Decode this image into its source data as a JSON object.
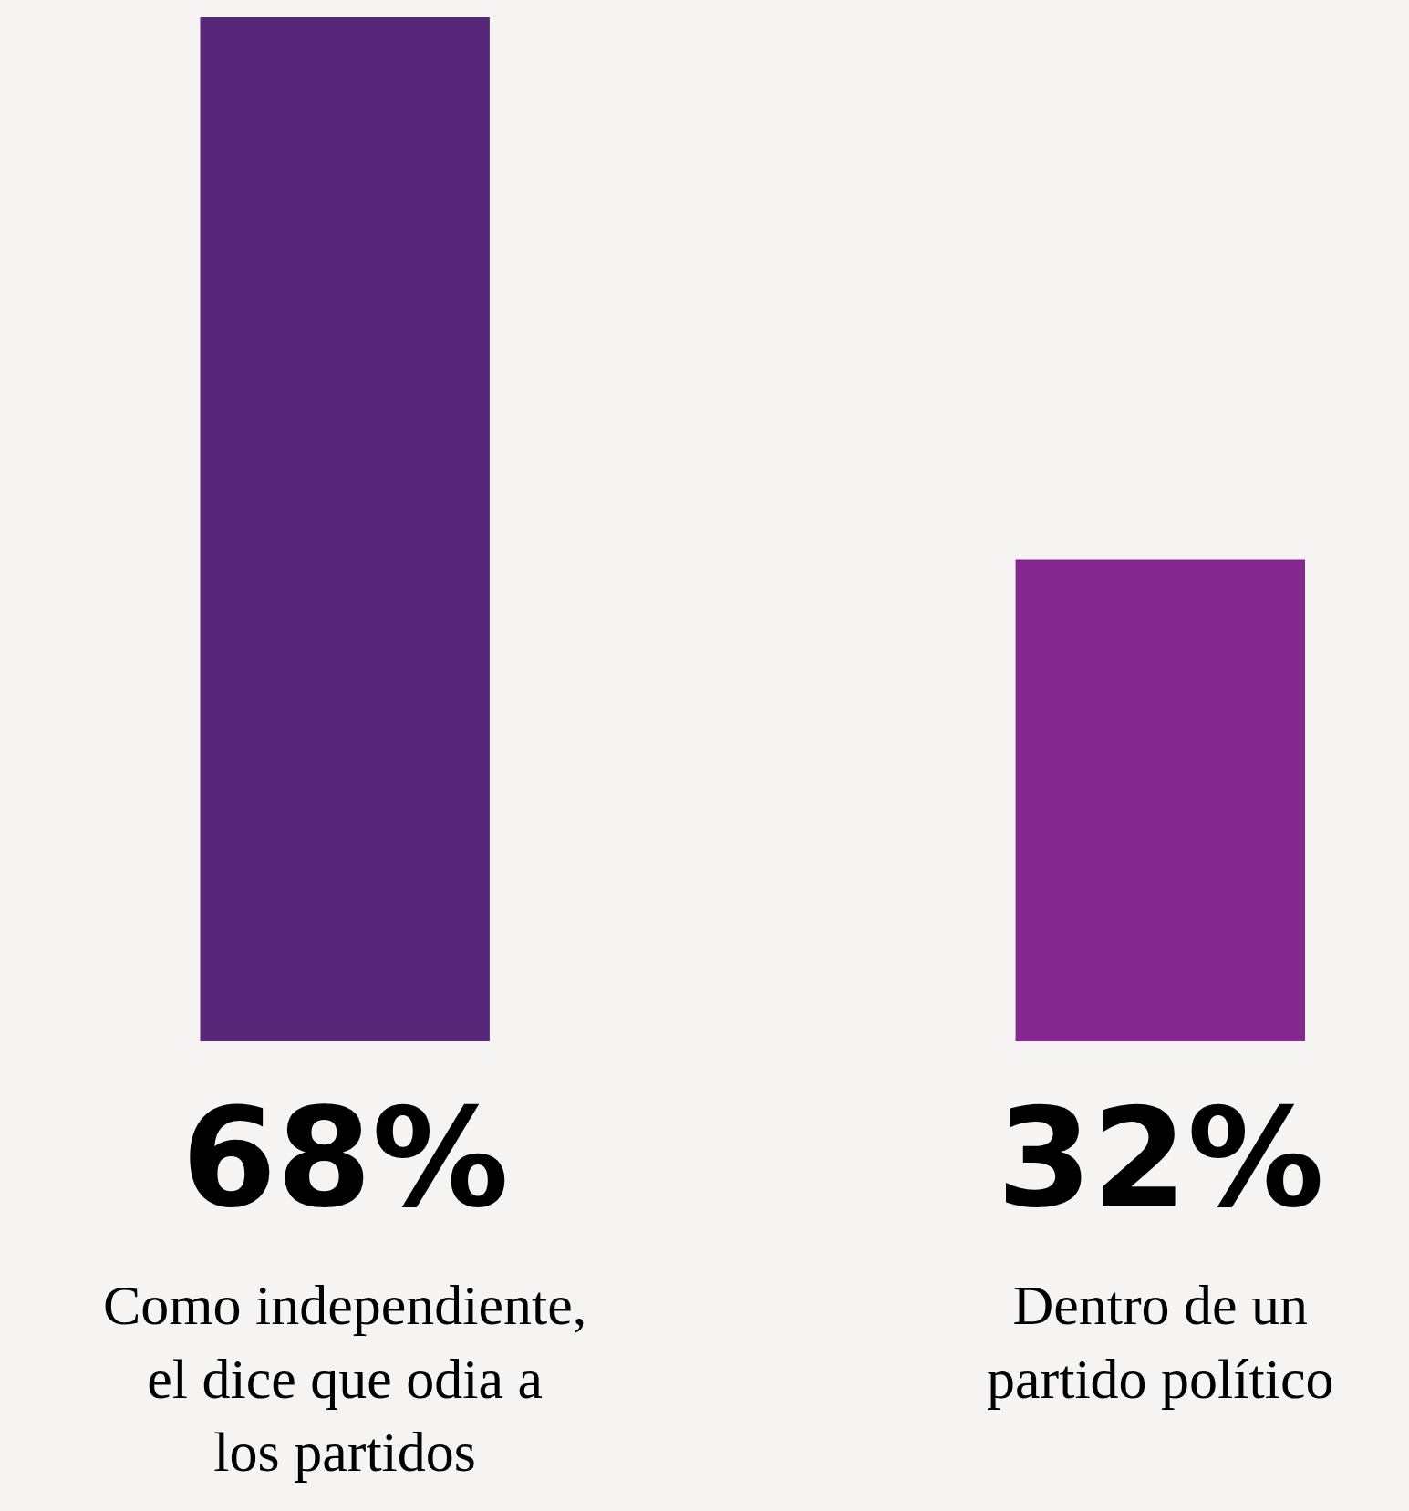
{
  "chart_data": {
    "type": "bar",
    "categories": [
      "Como independiente, el dice que odia a los partidos",
      "Dentro de un partido político"
    ],
    "values": [
      68,
      32
    ],
    "colors": [
      "#57287a",
      "#84288f"
    ],
    "value_labels": [
      "68%",
      "32%"
    ]
  }
}
